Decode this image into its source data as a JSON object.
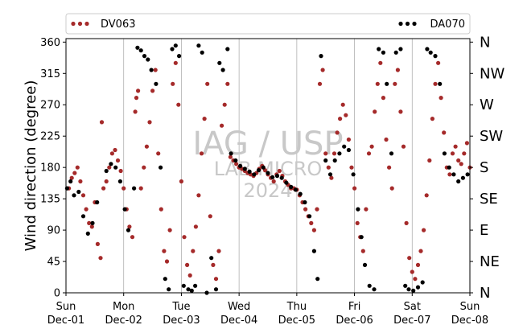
{
  "chart_data": {
    "type": "scatter",
    "ylabel": "Wind direction (degree)",
    "ylim": [
      0,
      365
    ],
    "yticks": [
      0,
      45,
      90,
      135,
      180,
      225,
      270,
      315,
      360
    ],
    "right_axis_labels": [
      {
        "value": 0,
        "label": "N"
      },
      {
        "value": 45,
        "label": "NE"
      },
      {
        "value": 90,
        "label": "E"
      },
      {
        "value": 135,
        "label": "SE"
      },
      {
        "value": 180,
        "label": "S"
      },
      {
        "value": 225,
        "label": "SW"
      },
      {
        "value": 270,
        "label": "W"
      },
      {
        "value": 315,
        "label": "NW"
      },
      {
        "value": 360,
        "label": "N"
      }
    ],
    "xlim": [
      "2024-12-01",
      "2024-12-08"
    ],
    "xticks": [
      {
        "day": "Sun",
        "date": "Dec-01"
      },
      {
        "day": "Mon",
        "date": "Dec-02"
      },
      {
        "day": "Tue",
        "date": "Dec-03"
      },
      {
        "day": "Wed",
        "date": "Dec-04"
      },
      {
        "day": "Thu",
        "date": "Dec-05"
      },
      {
        "day": "Fri",
        "date": "Dec-06"
      },
      {
        "day": "Sat",
        "date": "Dec-07"
      },
      {
        "day": "Sun",
        "date": "Dec-08"
      }
    ],
    "grid": "vertical",
    "legend_position": "top",
    "watermark": {
      "line1": "IAG / USP",
      "line2": "LAB MICRO",
      "line3": "2024"
    },
    "series": [
      {
        "name": "DV063",
        "color": "#a52a2a",
        "points": [
          [
            0.05,
            150
          ],
          [
            0.1,
            165
          ],
          [
            0.15,
            172
          ],
          [
            0.2,
            180
          ],
          [
            0.25,
            160
          ],
          [
            0.3,
            140
          ],
          [
            0.35,
            120
          ],
          [
            0.4,
            100
          ],
          [
            0.45,
            95
          ],
          [
            0.5,
            130
          ],
          [
            0.55,
            70
          ],
          [
            0.6,
            50
          ],
          [
            0.62,
            245
          ],
          [
            0.65,
            150
          ],
          [
            0.7,
            160
          ],
          [
            0.75,
            180
          ],
          [
            0.8,
            200
          ],
          [
            0.85,
            205
          ],
          [
            0.9,
            190
          ],
          [
            0.95,
            175
          ],
          [
            1.0,
            150
          ],
          [
            1.05,
            120
          ],
          [
            1.1,
            95
          ],
          [
            1.15,
            80
          ],
          [
            1.2,
            260
          ],
          [
            1.22,
            280
          ],
          [
            1.25,
            290
          ],
          [
            1.3,
            150
          ],
          [
            1.35,
            180
          ],
          [
            1.4,
            210
          ],
          [
            1.45,
            245
          ],
          [
            1.5,
            290
          ],
          [
            1.55,
            320
          ],
          [
            1.6,
            200
          ],
          [
            1.65,
            120
          ],
          [
            1.7,
            60
          ],
          [
            1.75,
            45
          ],
          [
            1.8,
            90
          ],
          [
            1.85,
            300
          ],
          [
            1.9,
            330
          ],
          [
            1.95,
            270
          ],
          [
            2.0,
            160
          ],
          [
            2.05,
            80
          ],
          [
            2.1,
            40
          ],
          [
            2.15,
            25
          ],
          [
            2.2,
            60
          ],
          [
            2.25,
            95
          ],
          [
            2.3,
            140
          ],
          [
            2.35,
            200
          ],
          [
            2.4,
            250
          ],
          [
            2.45,
            300
          ],
          [
            2.5,
            110
          ],
          [
            2.55,
            40
          ],
          [
            2.6,
            20
          ],
          [
            2.65,
            60
          ],
          [
            2.7,
            240
          ],
          [
            2.75,
            270
          ],
          [
            2.8,
            300
          ],
          [
            2.85,
            195
          ],
          [
            2.9,
            190
          ],
          [
            2.95,
            185
          ],
          [
            3.0,
            180
          ],
          [
            3.05,
            178
          ],
          [
            3.1,
            175
          ],
          [
            3.15,
            172
          ],
          [
            3.2,
            170
          ],
          [
            3.25,
            168
          ],
          [
            3.3,
            172
          ],
          [
            3.35,
            178
          ],
          [
            3.4,
            182
          ],
          [
            3.45,
            176
          ],
          [
            3.5,
            170
          ],
          [
            3.55,
            165
          ],
          [
            3.6,
            160
          ],
          [
            3.65,
            170
          ],
          [
            3.7,
            175
          ],
          [
            3.75,
            168
          ],
          [
            3.8,
            160
          ],
          [
            3.85,
            155
          ],
          [
            3.9,
            150
          ],
          [
            3.95,
            150
          ],
          [
            4.0,
            148
          ],
          [
            4.05,
            140
          ],
          [
            4.1,
            130
          ],
          [
            4.15,
            120
          ],
          [
            4.2,
            110
          ],
          [
            4.25,
            100
          ],
          [
            4.3,
            90
          ],
          [
            4.35,
            120
          ],
          [
            4.4,
            300
          ],
          [
            4.45,
            320
          ],
          [
            4.5,
            200
          ],
          [
            4.55,
            180
          ],
          [
            4.6,
            165
          ],
          [
            4.65,
            200
          ],
          [
            4.7,
            230
          ],
          [
            4.75,
            250
          ],
          [
            4.8,
            270
          ],
          [
            4.85,
            255
          ],
          [
            4.9,
            220
          ],
          [
            4.95,
            180
          ],
          [
            5.0,
            150
          ],
          [
            5.05,
            100
          ],
          [
            5.1,
            80
          ],
          [
            5.15,
            60
          ],
          [
            5.2,
            120
          ],
          [
            5.25,
            200
          ],
          [
            5.3,
            210
          ],
          [
            5.35,
            260
          ],
          [
            5.4,
            300
          ],
          [
            5.45,
            330
          ],
          [
            5.5,
            280
          ],
          [
            5.55,
            220
          ],
          [
            5.6,
            180
          ],
          [
            5.65,
            150
          ],
          [
            5.7,
            300
          ],
          [
            5.75,
            320
          ],
          [
            5.8,
            260
          ],
          [
            5.85,
            210
          ],
          [
            5.9,
            100
          ],
          [
            5.95,
            50
          ],
          [
            6.0,
            30
          ],
          [
            6.05,
            20
          ],
          [
            6.1,
            40
          ],
          [
            6.15,
            60
          ],
          [
            6.2,
            90
          ],
          [
            6.25,
            140
          ],
          [
            6.3,
            190
          ],
          [
            6.35,
            250
          ],
          [
            6.4,
            300
          ],
          [
            6.45,
            330
          ],
          [
            6.5,
            280
          ],
          [
            6.55,
            230
          ],
          [
            6.6,
            180
          ],
          [
            6.65,
            170
          ],
          [
            6.7,
            200
          ],
          [
            6.75,
            210
          ],
          [
            6.8,
            190
          ],
          [
            6.85,
            185
          ],
          [
            6.9,
            200
          ],
          [
            6.95,
            215
          ],
          [
            7.0,
            180
          ]
        ]
      },
      {
        "name": "DA070",
        "color": "#000000",
        "points": [
          [
            0.02,
            150
          ],
          [
            0.08,
            160
          ],
          [
            0.14,
            140
          ],
          [
            0.22,
            145
          ],
          [
            0.3,
            110
          ],
          [
            0.38,
            85
          ],
          [
            0.46,
            100
          ],
          [
            0.54,
            130
          ],
          [
            0.7,
            175
          ],
          [
            0.78,
            185
          ],
          [
            0.86,
            180
          ],
          [
            0.94,
            160
          ],
          [
            1.02,
            120
          ],
          [
            1.08,
            90
          ],
          [
            1.18,
            150
          ],
          [
            1.24,
            352
          ],
          [
            1.3,
            348
          ],
          [
            1.36,
            340
          ],
          [
            1.42,
            335
          ],
          [
            1.48,
            320
          ],
          [
            1.56,
            300
          ],
          [
            1.64,
            180
          ],
          [
            1.72,
            20
          ],
          [
            1.78,
            5
          ],
          [
            1.84,
            350
          ],
          [
            1.9,
            355
          ],
          [
            1.96,
            340
          ],
          [
            2.04,
            10
          ],
          [
            2.12,
            5
          ],
          [
            2.18,
            3
          ],
          [
            2.24,
            10
          ],
          [
            2.3,
            355
          ],
          [
            2.36,
            345
          ],
          [
            2.44,
            0
          ],
          [
            2.52,
            50
          ],
          [
            2.6,
            5
          ],
          [
            2.66,
            330
          ],
          [
            2.72,
            320
          ],
          [
            2.8,
            350
          ],
          [
            2.86,
            200
          ],
          [
            2.94,
            190
          ],
          [
            3.02,
            182
          ],
          [
            3.1,
            178
          ],
          [
            3.18,
            174
          ],
          [
            3.26,
            170
          ],
          [
            3.34,
            176
          ],
          [
            3.42,
            180
          ],
          [
            3.5,
            172
          ],
          [
            3.58,
            166
          ],
          [
            3.66,
            168
          ],
          [
            3.74,
            165
          ],
          [
            3.82,
            158
          ],
          [
            3.9,
            152
          ],
          [
            3.98,
            148
          ],
          [
            4.06,
            142
          ],
          [
            4.14,
            130
          ],
          [
            4.22,
            110
          ],
          [
            4.3,
            60
          ],
          [
            4.36,
            20
          ],
          [
            4.42,
            340
          ],
          [
            4.5,
            190
          ],
          [
            4.58,
            170
          ],
          [
            4.66,
            190
          ],
          [
            4.74,
            200
          ],
          [
            4.82,
            210
          ],
          [
            4.9,
            205
          ],
          [
            4.98,
            170
          ],
          [
            5.06,
            120
          ],
          [
            5.12,
            80
          ],
          [
            5.18,
            40
          ],
          [
            5.26,
            10
          ],
          [
            5.34,
            5
          ],
          [
            5.42,
            350
          ],
          [
            5.5,
            345
          ],
          [
            5.56,
            300
          ],
          [
            5.64,
            200
          ],
          [
            5.72,
            345
          ],
          [
            5.8,
            350
          ],
          [
            5.88,
            10
          ],
          [
            5.94,
            5
          ],
          [
            6.02,
            3
          ],
          [
            6.1,
            8
          ],
          [
            6.18,
            15
          ],
          [
            6.26,
            350
          ],
          [
            6.32,
            345
          ],
          [
            6.4,
            340
          ],
          [
            6.48,
            300
          ],
          [
            6.56,
            200
          ],
          [
            6.64,
            180
          ],
          [
            6.72,
            170
          ],
          [
            6.8,
            160
          ],
          [
            6.88,
            165
          ],
          [
            6.96,
            170
          ]
        ]
      }
    ]
  }
}
